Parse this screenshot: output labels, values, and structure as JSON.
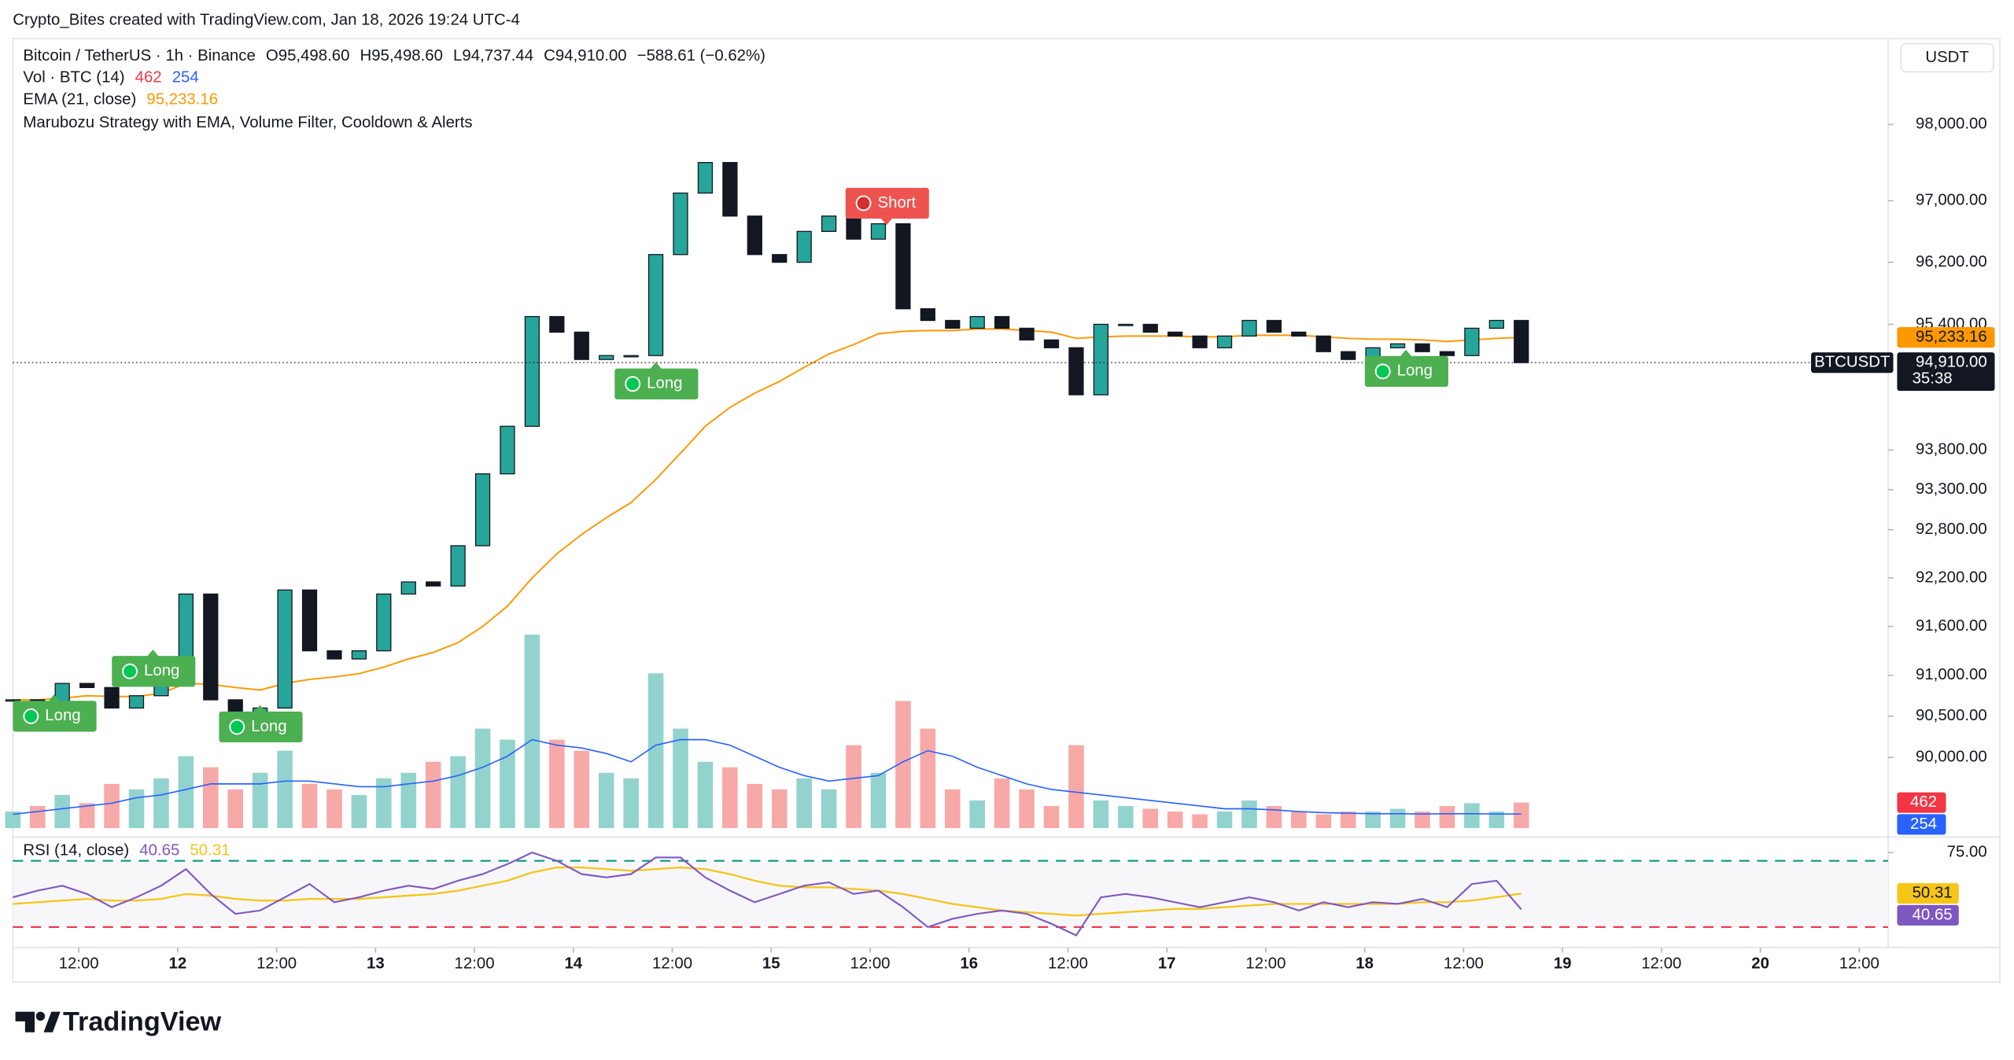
{
  "header": {
    "attribution": "Crypto_Bites created with TradingView.com, Jan 18, 2026 19:24 UTC-4",
    "symbol": "Bitcoin / TetherUS · 1h · Binance",
    "ohlc": [
      {
        "label": "O",
        "value": "95,498.60"
      },
      {
        "label": "H",
        "value": "95,498.60"
      },
      {
        "label": "L",
        "value": "94,737.44"
      },
      {
        "label": "C",
        "value": "94,910.00"
      }
    ],
    "change": "−588.61 (−0.62%)",
    "strategy": "Marubozu Strategy with EMA, Volume Filter, Cooldown & Alerts",
    "currency": "USDT",
    "logo": "TradingView"
  },
  "chart_data": {
    "type": "candlestick",
    "x": [
      4,
      7,
      10,
      13,
      16,
      19,
      22,
      25,
      28,
      31,
      34,
      37,
      40,
      43,
      46,
      49,
      52,
      55,
      58,
      61,
      64,
      67,
      70,
      73,
      76,
      79,
      82,
      85,
      88,
      91,
      94,
      97,
      100,
      103,
      106,
      109,
      112,
      115,
      118,
      121,
      124,
      127,
      130,
      133,
      136,
      139,
      142,
      145,
      148,
      151,
      154,
      157,
      160,
      163,
      166,
      169,
      172,
      175,
      178,
      181,
      184,
      187
    ],
    "xlim": [
      4,
      231.5
    ],
    "xticks": [
      {
        "value": 12,
        "label": "12:00"
      },
      {
        "value": 24,
        "label": "12"
      },
      {
        "value": 36,
        "label": "12:00"
      },
      {
        "value": 48,
        "label": "13"
      },
      {
        "value": 60,
        "label": "12:00"
      },
      {
        "value": 72,
        "label": "14"
      },
      {
        "value": 84,
        "label": "12:00"
      },
      {
        "value": 96,
        "label": "15"
      },
      {
        "value": 108,
        "label": "12:00"
      },
      {
        "value": 120,
        "label": "16"
      },
      {
        "value": 132,
        "label": "12:00"
      },
      {
        "value": 144,
        "label": "17"
      },
      {
        "value": 156,
        "label": "12:00"
      },
      {
        "value": 168,
        "label": "18"
      },
      {
        "value": 180,
        "label": "12:00"
      },
      {
        "value": 192,
        "label": "19"
      },
      {
        "value": 204,
        "label": "12:00"
      },
      {
        "value": 216,
        "label": "20"
      },
      {
        "value": 228,
        "label": "12:00"
      }
    ],
    "close": [
      90700,
      90650,
      90900,
      90850,
      90600,
      90750,
      91200,
      92000,
      90700,
      90400,
      90600,
      92050,
      91300,
      91200,
      91300,
      92000,
      92150,
      92100,
      92600,
      93500,
      94100,
      95500,
      95300,
      94950,
      95000,
      95000,
      96300,
      97100,
      97500,
      96800,
      96300,
      96200,
      96600,
      96800,
      96500,
      96700,
      95600,
      95450,
      95350,
      95500,
      95350,
      95200,
      95100,
      94500,
      95400,
      95400,
      95300,
      95250,
      95100,
      95250,
      95450,
      95300,
      95250,
      95050,
      94950,
      95100,
      95150,
      95050,
      95000,
      95350,
      95450,
      94910
    ],
    "up_color": "#26a69a",
    "down_color": "#131722",
    "ylim": [
      89040,
      99140
    ],
    "log_scale": true,
    "grid": false,
    "yticks": [
      {
        "value": 98000,
        "label": "98,000.00"
      },
      {
        "value": 97000,
        "label": "97,000.00"
      },
      {
        "value": 96200,
        "label": "96,200.00"
      },
      {
        "value": 95400,
        "label": "95,400.00"
      },
      {
        "value": 93800,
        "label": "93,800.00"
      },
      {
        "value": 93300,
        "label": "93,300.00"
      },
      {
        "value": 92800,
        "label": "92,800.00"
      },
      {
        "value": 92200,
        "label": "92,200.00"
      },
      {
        "value": 91600,
        "label": "91,600.00"
      },
      {
        "value": 91000,
        "label": "91,000.00"
      },
      {
        "value": 90500,
        "label": "90,500.00"
      },
      {
        "value": 90000,
        "label": "90,000.00"
      }
    ],
    "last_price": {
      "value": 94910,
      "label": "94,910.00"
    },
    "symbol_tag": "BTCUSDT",
    "countdown": "35:38",
    "ema": {
      "name": "EMA (21, close)",
      "color": "#ff9800",
      "values": [
        90700,
        90700,
        90720,
        90750,
        90740,
        90740,
        90780,
        90900,
        90890,
        90850,
        90820,
        90900,
        90950,
        90980,
        91020,
        91100,
        91200,
        91280,
        91400,
        91600,
        91850,
        92200,
        92500,
        92740,
        92950,
        93140,
        93430,
        93760,
        94100,
        94340,
        94520,
        94670,
        94850,
        95020,
        95140,
        95280,
        95310,
        95320,
        95320,
        95340,
        95340,
        95320,
        95300,
        95220,
        95240,
        95250,
        95250,
        95250,
        95240,
        95240,
        95260,
        95260,
        95260,
        95240,
        95220,
        95210,
        95210,
        95200,
        95180,
        95200,
        95220,
        95233.16
      ],
      "last": {
        "value": 95233.16,
        "label": "95,233.16"
      }
    },
    "signals": [
      {
        "label": "Long",
        "x": 9,
        "price": 90750
      },
      {
        "label": "Long",
        "x": 21,
        "price": 91300
      },
      {
        "label": "Long",
        "x": 34,
        "price": 90620
      },
      {
        "label": "Long",
        "x": 82,
        "price": 94900
      },
      {
        "label": "Short",
        "x": 110,
        "price": 96700
      },
      {
        "label": "Long",
        "x": 173,
        "price": 95060
      }
    ],
    "volume": {
      "name": "Vol · BTC (14)",
      "up_color": "#93d3cd",
      "down_color": "#f7a9a7",
      "ma_color": "#2962ff",
      "ylim": [
        0,
        3600
      ],
      "values": [
        300,
        400,
        600,
        450,
        800,
        700,
        900,
        1300,
        1100,
        700,
        1000,
        1400,
        800,
        700,
        600,
        900,
        1000,
        1200,
        1300,
        1800,
        1600,
        3500,
        1600,
        1400,
        1000,
        900,
        2800,
        1800,
        1200,
        1100,
        800,
        700,
        900,
        700,
        1500,
        1000,
        2300,
        1800,
        700,
        500,
        900,
        700,
        400,
        1500,
        500,
        400,
        350,
        300,
        250,
        300,
        500,
        400,
        300,
        250,
        300,
        300,
        350,
        300,
        400,
        450,
        300,
        462
      ],
      "ma_values": [
        250,
        300,
        350,
        400,
        450,
        550,
        600,
        700,
        800,
        800,
        800,
        850,
        850,
        800,
        750,
        750,
        800,
        850,
        950,
        1100,
        1300,
        1600,
        1500,
        1450,
        1350,
        1200,
        1500,
        1600,
        1600,
        1500,
        1300,
        1100,
        950,
        850,
        900,
        950,
        1200,
        1400,
        1300,
        1100,
        950,
        800,
        700,
        650,
        600,
        550,
        500,
        450,
        400,
        350,
        350,
        330,
        300,
        280,
        270,
        260,
        260,
        255,
        260,
        260,
        254,
        254
      ]
    },
    "rsi": {
      "name": "RSI (14, close)",
      "color": "#7e57c2",
      "ma_color": "#f5c518",
      "ylim": [
        20,
        82
      ],
      "yticks": [
        {
          "value": 75,
          "label": "75.00"
        }
      ],
      "levels": [
        70,
        30
      ],
      "values": [
        48,
        52,
        55,
        50,
        42,
        48,
        55,
        65,
        50,
        38,
        40,
        48,
        56,
        45,
        48,
        52,
        55,
        53,
        58,
        62,
        68,
        75,
        70,
        62,
        60,
        62,
        72,
        72,
        60,
        52,
        45,
        50,
        55,
        57,
        50,
        52,
        42,
        30,
        35,
        38,
        40,
        38,
        32,
        25,
        48,
        50,
        48,
        45,
        42,
        45,
        48,
        45,
        40,
        45,
        42,
        45,
        44,
        47,
        42,
        56,
        58,
        40.65
      ],
      "ma_values": [
        44,
        45,
        46,
        47,
        46,
        46,
        47,
        50,
        49,
        47,
        46,
        46,
        47,
        47,
        47,
        48,
        49,
        50,
        52,
        55,
        58,
        63,
        66,
        66,
        65,
        64,
        65,
        66,
        65,
        62,
        58,
        55,
        54,
        54,
        53,
        52,
        50,
        47,
        44,
        42,
        40,
        39,
        38,
        37,
        38,
        39,
        40,
        41,
        41,
        42,
        43,
        44,
        44,
        44,
        44,
        44,
        44,
        45,
        45,
        46,
        48,
        50.31
      ]
    }
  }
}
